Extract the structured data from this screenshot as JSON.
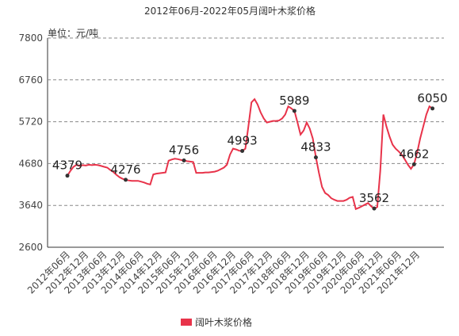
{
  "chart_data": {
    "type": "line",
    "title": "2012年06月-2022年05月阔叶木浆价格",
    "y_unit": "单位：元/吨",
    "categories": [
      "2012年06月",
      null,
      null,
      null,
      null,
      null,
      "2012年12月",
      null,
      null,
      null,
      null,
      null,
      "2013年06月",
      null,
      null,
      null,
      null,
      null,
      "2013年12月",
      null,
      null,
      null,
      null,
      null,
      "2014年06月",
      null,
      null,
      null,
      null,
      null,
      "2014年12月",
      null,
      null,
      null,
      null,
      null,
      "2015年06月",
      null,
      null,
      null,
      null,
      null,
      "2015年12月",
      null,
      null,
      null,
      null,
      null,
      "2016年06月",
      null,
      null,
      null,
      null,
      null,
      "2016年12月",
      null,
      null,
      null,
      null,
      null,
      "2017年06月",
      null,
      null,
      null,
      null,
      null,
      "2017年12月",
      null,
      null,
      null,
      null,
      null,
      "2018年06月",
      null,
      null,
      null,
      null,
      null,
      "2018年12月",
      null,
      null,
      null,
      null,
      null,
      "2019年06月",
      null,
      null,
      null,
      null,
      null,
      "2019年12月",
      null,
      null,
      null,
      null,
      null,
      "2020年06月",
      null,
      null,
      null,
      null,
      null,
      "2020年12月",
      null,
      null,
      null,
      null,
      null,
      "2021年06月",
      null,
      null,
      null,
      null,
      null,
      "2021年12月",
      null,
      null,
      null,
      null,
      null
    ],
    "series": [
      {
        "name": "阔叶木浆价格",
        "color": "#e8334a",
        "values": [
          4379,
          4500,
          4600,
          4650,
          4620,
          4640,
          4630,
          4650,
          4640,
          4650,
          4640,
          4620,
          4600,
          4580,
          4520,
          4470,
          4400,
          4340,
          4300,
          4276,
          4260,
          4250,
          4250,
          4250,
          4230,
          4210,
          4180,
          4160,
          4410,
          4430,
          4440,
          4450,
          4460,
          4750,
          4780,
          4800,
          4790,
          4770,
          4756,
          4740,
          4730,
          4720,
          4450,
          4450,
          4450,
          4460,
          4460,
          4470,
          4480,
          4500,
          4540,
          4580,
          4650,
          4900,
          5050,
          5030,
          5000,
          4993,
          5050,
          5600,
          6200,
          6280,
          6150,
          5950,
          5800,
          5700,
          5720,
          5740,
          5740,
          5750,
          5800,
          5900,
          6100,
          6050,
          5989,
          5700,
          5400,
          5500,
          5700,
          5550,
          5300,
          4833,
          4450,
          4100,
          3950,
          3900,
          3820,
          3780,
          3750,
          3750,
          3750,
          3780,
          3830,
          3850,
          3550,
          3580,
          3620,
          3660,
          3700,
          3620,
          3562,
          3600,
          4500,
          5900,
          5600,
          5350,
          5150,
          5050,
          4980,
          4900,
          4780,
          4650,
          4550,
          4662,
          4950,
          5300,
          5600,
          5900,
          6100,
          6050
        ]
      }
    ],
    "labeled_points": [
      0,
      19,
      38,
      57,
      74,
      81,
      100,
      113,
      119
    ],
    "ylim": [
      2600,
      7800
    ],
    "yticks": [
      2600,
      3640,
      4680,
      5720,
      6760,
      7800
    ],
    "grid": true
  }
}
